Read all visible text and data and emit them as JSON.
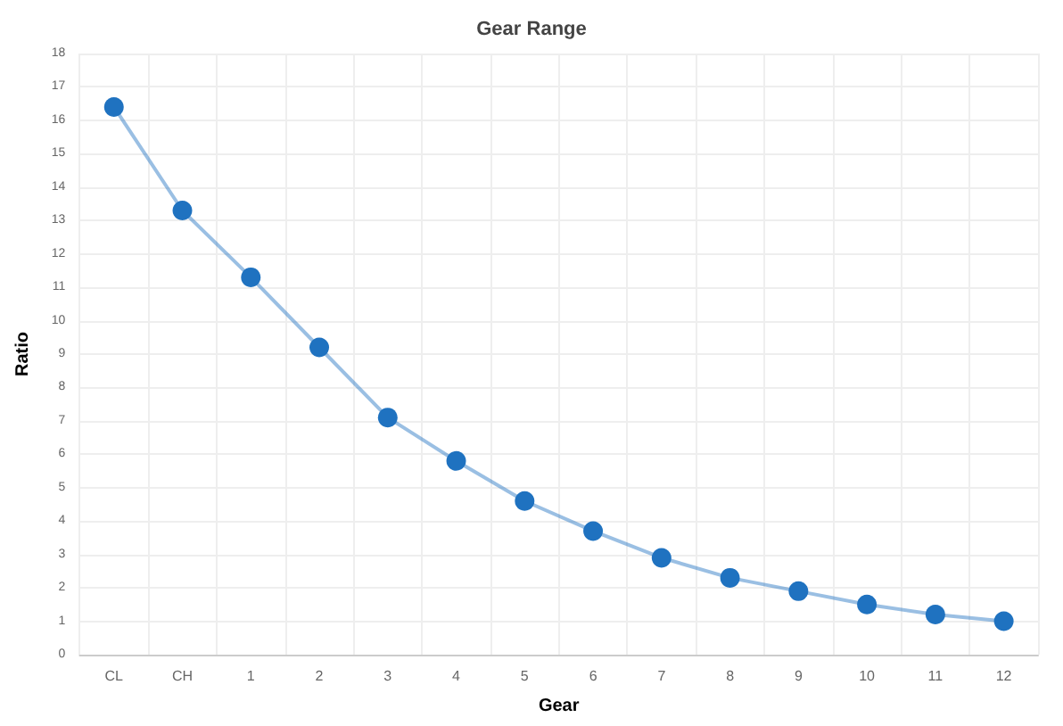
{
  "chart_data": {
    "type": "line",
    "title": "Gear Range",
    "xlabel": "Gear",
    "ylabel": "Ratio",
    "categories": [
      "CL",
      "CH",
      "1",
      "2",
      "3",
      "4",
      "5",
      "6",
      "7",
      "8",
      "9",
      "10",
      "11",
      "12"
    ],
    "series": [
      {
        "color": "#1f72c0",
        "values": [
          16.4,
          13.3,
          11.3,
          9.2,
          7.1,
          5.8,
          4.6,
          3.7,
          2.9,
          2.3,
          1.9,
          1.5,
          1.2,
          1.0
        ]
      }
    ],
    "ylim": [
      0,
      18
    ],
    "yticks": [
      0,
      1,
      2,
      3,
      4,
      5,
      6,
      7,
      8,
      9,
      10,
      11,
      12,
      13,
      14,
      15,
      16,
      17,
      18
    ],
    "grid": true,
    "marker": "circle",
    "line_style": "solid"
  }
}
